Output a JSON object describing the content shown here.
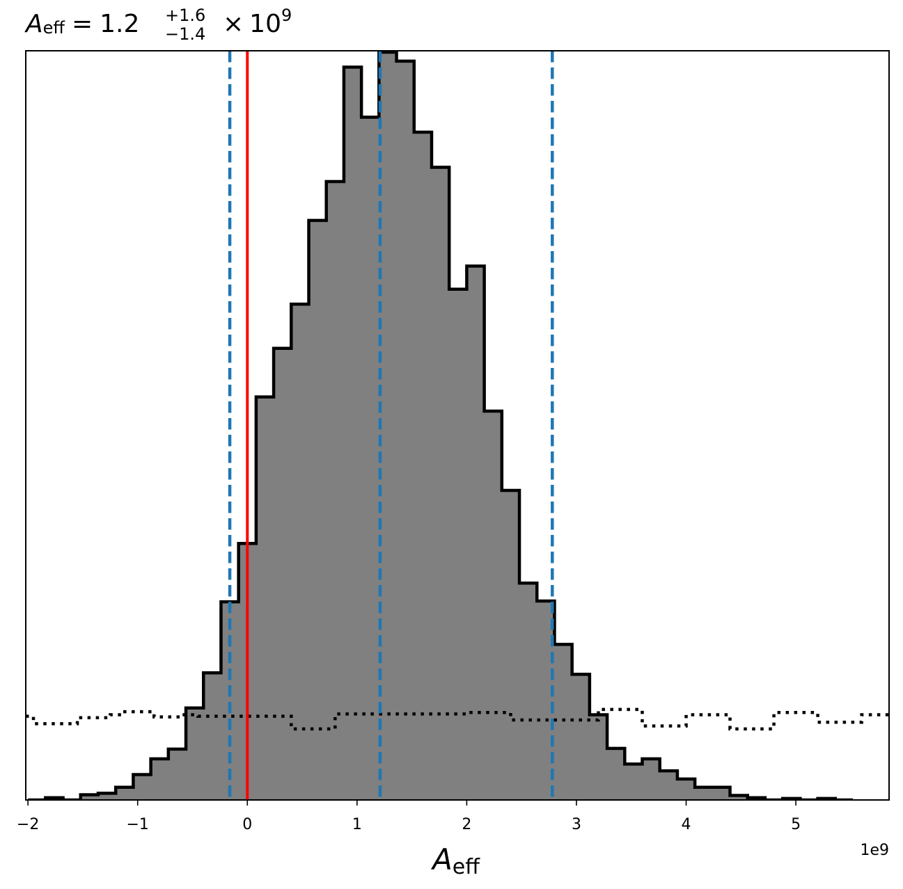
{
  "chart_data": {
    "type": "histogram",
    "title": {
      "symbol": "A",
      "subscript": "eff",
      "equals": "=",
      "median": "1.2",
      "upper": "+1.6",
      "lower": "−1.4",
      "times": "×",
      "base": "10",
      "exponent": "9"
    },
    "xlabel": {
      "symbol": "A",
      "subscript": "eff"
    },
    "x_offset_label": "1e9",
    "xlim": [
      -2.02,
      5.85
    ],
    "ylim": [
      0,
      1.0
    ],
    "xticks": [
      -2,
      -1,
      0,
      1,
      2,
      3,
      4,
      5
    ],
    "xtick_labels": [
      "−2",
      "−1",
      "0",
      "1",
      "2",
      "3",
      "4",
      "5"
    ],
    "bin_width": 0.16,
    "posterior": {
      "fill_color": "#808080",
      "edge_color": "#000000",
      "bins": [
        {
          "x0": -2.0,
          "y": 0.0
        },
        {
          "x0": -1.84,
          "y": 0.003
        },
        {
          "x0": -1.68,
          "y": 0.0
        },
        {
          "x0": -1.52,
          "y": 0.007
        },
        {
          "x0": -1.36,
          "y": 0.009
        },
        {
          "x0": -1.2,
          "y": 0.017
        },
        {
          "x0": -1.04,
          "y": 0.034
        },
        {
          "x0": -0.88,
          "y": 0.055
        },
        {
          "x0": -0.72,
          "y": 0.068
        },
        {
          "x0": -0.56,
          "y": 0.123
        },
        {
          "x0": -0.4,
          "y": 0.17
        },
        {
          "x0": -0.24,
          "y": 0.265
        },
        {
          "x0": -0.08,
          "y": 0.343
        },
        {
          "x0": 0.08,
          "y": 0.539
        },
        {
          "x0": 0.24,
          "y": 0.604
        },
        {
          "x0": 0.4,
          "y": 0.663
        },
        {
          "x0": 0.56,
          "y": 0.775
        },
        {
          "x0": 0.72,
          "y": 0.827
        },
        {
          "x0": 0.88,
          "y": 0.98
        },
        {
          "x0": 1.04,
          "y": 0.913
        },
        {
          "x0": 1.2,
          "y": 1.0
        },
        {
          "x0": 1.36,
          "y": 0.988
        },
        {
          "x0": 1.52,
          "y": 0.893
        },
        {
          "x0": 1.68,
          "y": 0.846
        },
        {
          "x0": 1.84,
          "y": 0.683
        },
        {
          "x0": 2.0,
          "y": 0.714
        },
        {
          "x0": 2.16,
          "y": 0.52
        },
        {
          "x0": 2.32,
          "y": 0.414
        },
        {
          "x0": 2.48,
          "y": 0.29
        },
        {
          "x0": 2.64,
          "y": 0.266
        },
        {
          "x0": 2.8,
          "y": 0.208
        },
        {
          "x0": 2.96,
          "y": 0.168
        },
        {
          "x0": 3.12,
          "y": 0.114
        },
        {
          "x0": 3.28,
          "y": 0.069
        },
        {
          "x0": 3.44,
          "y": 0.048
        },
        {
          "x0": 3.6,
          "y": 0.055
        },
        {
          "x0": 3.76,
          "y": 0.039
        },
        {
          "x0": 3.92,
          "y": 0.028
        },
        {
          "x0": 4.08,
          "y": 0.017
        },
        {
          "x0": 4.24,
          "y": 0.017
        },
        {
          "x0": 4.4,
          "y": 0.006
        },
        {
          "x0": 4.56,
          "y": 0.003
        },
        {
          "x0": 4.72,
          "y": 0.0
        },
        {
          "x0": 4.88,
          "y": 0.002
        },
        {
          "x0": 5.04,
          "y": 0.0
        },
        {
          "x0": 5.2,
          "y": 0.002
        },
        {
          "x0": 5.36,
          "y": 0.0
        }
      ]
    },
    "prior": {
      "line_style": "dotted",
      "color": "#000000",
      "bins": [
        {
          "x0": -2.02,
          "x1": -1.95,
          "y": 0.112
        },
        {
          "x0": -1.95,
          "x1": -1.55,
          "y": 0.102
        },
        {
          "x0": -1.55,
          "x1": -1.25,
          "y": 0.11
        },
        {
          "x0": -1.25,
          "x1": -1.15,
          "y": 0.114
        },
        {
          "x0": -1.15,
          "x1": -0.85,
          "y": 0.118
        },
        {
          "x0": -0.85,
          "x1": -0.6,
          "y": 0.111
        },
        {
          "x0": -0.6,
          "x1": -0.45,
          "y": 0.114
        },
        {
          "x0": -0.45,
          "x1": 0.4,
          "y": 0.112
        },
        {
          "x0": 0.4,
          "x1": 0.8,
          "y": 0.095
        },
        {
          "x0": 0.8,
          "x1": 2.0,
          "y": 0.115
        },
        {
          "x0": 2.0,
          "x1": 2.4,
          "y": 0.117
        },
        {
          "x0": 2.4,
          "x1": 3.2,
          "y": 0.107
        },
        {
          "x0": 3.2,
          "x1": 3.6,
          "y": 0.121
        },
        {
          "x0": 3.6,
          "x1": 4.0,
          "y": 0.099
        },
        {
          "x0": 4.0,
          "x1": 4.4,
          "y": 0.114
        },
        {
          "x0": 4.4,
          "x1": 4.8,
          "y": 0.095
        },
        {
          "x0": 4.8,
          "x1": 5.2,
          "y": 0.117
        },
        {
          "x0": 5.2,
          "x1": 5.6,
          "y": 0.104
        },
        {
          "x0": 5.6,
          "x1": 5.85,
          "y": 0.114
        }
      ]
    },
    "credible_lines": {
      "color": "#1f77b4",
      "style": "dashed",
      "values": [
        -0.16,
        1.21,
        2.78
      ]
    },
    "truth_line": {
      "color": "#ff0000",
      "value": 0.0
    }
  }
}
